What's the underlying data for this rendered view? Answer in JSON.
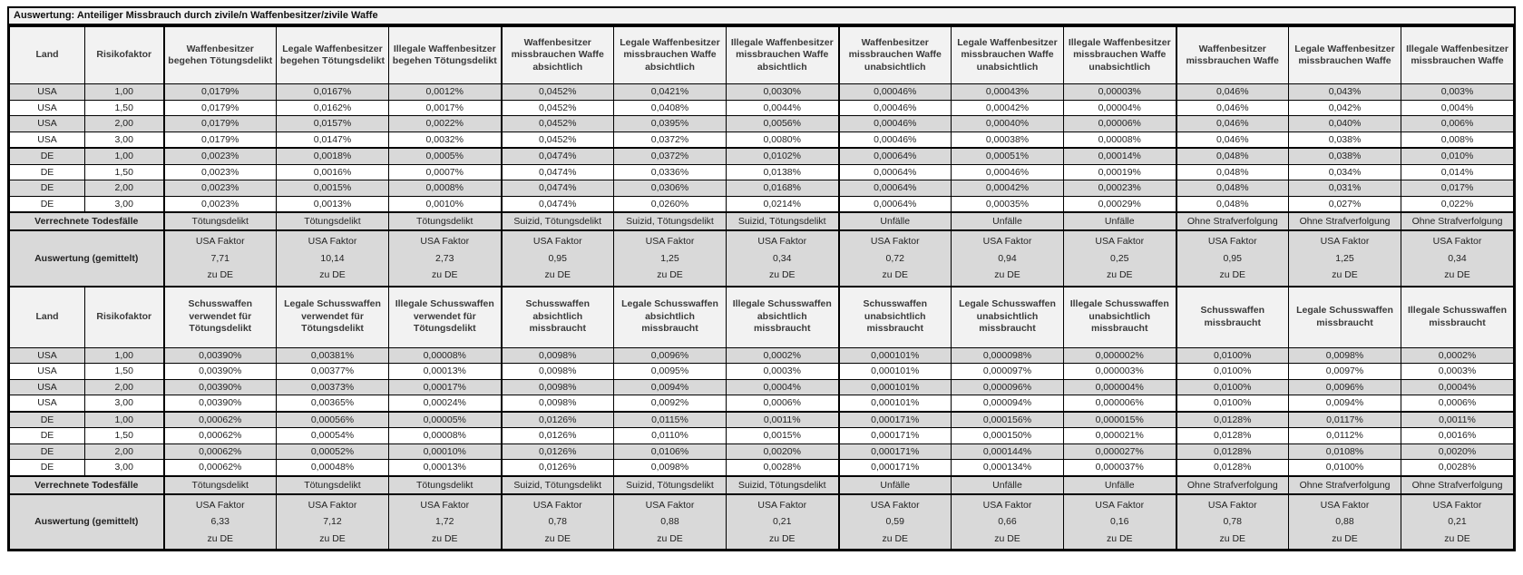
{
  "title": "Auswertung: Anteiliger Missbrauch durch zivile/n Waffenbesitzer/zivile Waffe",
  "labels": {
    "verrechnete_todesfaelle": "Verrechnete Todesfälle",
    "auswertung_gemittelt": "Auswertung (gemittelt)",
    "usa_faktor": "USA Faktor",
    "zu_de": "zu DE"
  },
  "colors": {
    "stripe_row": "#d9d9d9",
    "header_bg": "#f2f2f2",
    "summary_bg": "#d9d9d9",
    "border": "#000000",
    "background": "#ffffff"
  },
  "tables": [
    {
      "headers": [
        "Land",
        "Risikofaktor",
        "Waffenbesitzer\nbegehen Tötungsdelikt",
        "Legale Waffenbesitzer\nbegehen Tötungsdelikt",
        "Illegale Waffenbesitzer\nbegehen Tötungsdelikt",
        "Waffenbesitzer\nmissbrauchen Waffe\nabsichtlich",
        "Legale Waffenbesitzer\nmissbrauchen Waffe\nabsichtlich",
        "Illegale Waffenbesitzer\nmissbrauchen Waffe\nabsichtlich",
        "Waffenbesitzer\nmissbrauchen Waffe\nunabsichtlich",
        "Legale Waffenbesitzer\nmissbrauchen Waffe\nunabsichtlich",
        "Illegale Waffenbesitzer\nmissbrauchen Waffe\nunabsichtlich",
        "Waffenbesitzer\nmissbrauchen Waffe",
        "Legale Waffenbesitzer\nmissbrauchen Waffe",
        "Illegale Waffenbesitzer\nmissbrauchen Waffe"
      ],
      "rows": [
        [
          "USA",
          "1,00",
          "0,0179%",
          "0,0167%",
          "0,0012%",
          "0,0452%",
          "0,0421%",
          "0,0030%",
          "0,00046%",
          "0,00043%",
          "0,00003%",
          "0,046%",
          "0,043%",
          "0,003%"
        ],
        [
          "USA",
          "1,50",
          "0,0179%",
          "0,0162%",
          "0,0017%",
          "0,0452%",
          "0,0408%",
          "0,0044%",
          "0,00046%",
          "0,00042%",
          "0,00004%",
          "0,046%",
          "0,042%",
          "0,004%"
        ],
        [
          "USA",
          "2,00",
          "0,0179%",
          "0,0157%",
          "0,0022%",
          "0,0452%",
          "0,0395%",
          "0,0056%",
          "0,00046%",
          "0,00040%",
          "0,00006%",
          "0,046%",
          "0,040%",
          "0,006%"
        ],
        [
          "USA",
          "3,00",
          "0,0179%",
          "0,0147%",
          "0,0032%",
          "0,0452%",
          "0,0372%",
          "0,0080%",
          "0,00046%",
          "0,00038%",
          "0,00008%",
          "0,046%",
          "0,038%",
          "0,008%"
        ],
        [
          "DE",
          "1,00",
          "0,0023%",
          "0,0018%",
          "0,0005%",
          "0,0474%",
          "0,0372%",
          "0,0102%",
          "0,00064%",
          "0,00051%",
          "0,00014%",
          "0,048%",
          "0,038%",
          "0,010%"
        ],
        [
          "DE",
          "1,50",
          "0,0023%",
          "0,0016%",
          "0,0007%",
          "0,0474%",
          "0,0336%",
          "0,0138%",
          "0,00064%",
          "0,00046%",
          "0,00019%",
          "0,048%",
          "0,034%",
          "0,014%"
        ],
        [
          "DE",
          "2,00",
          "0,0023%",
          "0,0015%",
          "0,0008%",
          "0,0474%",
          "0,0306%",
          "0,0168%",
          "0,00064%",
          "0,00042%",
          "0,00023%",
          "0,048%",
          "0,031%",
          "0,017%"
        ],
        [
          "DE",
          "3,00",
          "0,0023%",
          "0,0013%",
          "0,0010%",
          "0,0474%",
          "0,0260%",
          "0,0214%",
          "0,00064%",
          "0,00035%",
          "0,00029%",
          "0,048%",
          "0,027%",
          "0,022%"
        ]
      ],
      "todesfaelle": [
        "Tötungsdelikt",
        "Tötungsdelikt",
        "Tötungsdelikt",
        "Suizid, Tötungsdelikt",
        "Suizid, Tötungsdelikt",
        "Suizid, Tötungsdelikt",
        "Unfälle",
        "Unfälle",
        "Unfälle",
        "Ohne Strafverfolgung",
        "Ohne Strafverfolgung",
        "Ohne Strafverfolgung"
      ],
      "usa_faktor_werte": [
        "7,71",
        "10,14",
        "2,73",
        "0,95",
        "1,25",
        "0,34",
        "0,72",
        "0,94",
        "0,25",
        "0,95",
        "1,25",
        "0,34"
      ]
    },
    {
      "headers": [
        "Land",
        "Risikofaktor",
        "Schusswaffen\nverwendet für\nTötungsdelikt",
        "Legale Schusswaffen\nverwendet für\nTötungsdelikt",
        "Illegale Schusswaffen\nverwendet für\nTötungsdelikt",
        "Schusswaffen\nabsichtlich\nmissbraucht",
        "Legale Schusswaffen\nabsichtlich\nmissbraucht",
        "Illegale Schusswaffen\nabsichtlich\nmissbraucht",
        "Schusswaffen\nunabsichtlich\nmissbraucht",
        "Legale Schusswaffen\nunabsichtlich\nmissbraucht",
        "Illegale Schusswaffen\nunabsichtlich\nmissbraucht",
        "Schusswaffen\nmissbraucht",
        "Legale Schusswaffen\nmissbraucht",
        "Illegale Schusswaffen\nmissbraucht"
      ],
      "rows": [
        [
          "USA",
          "1,00",
          "0,00390%",
          "0,00381%",
          "0,00008%",
          "0,0098%",
          "0,0096%",
          "0,0002%",
          "0,000101%",
          "0,000098%",
          "0,000002%",
          "0,0100%",
          "0,0098%",
          "0,0002%"
        ],
        [
          "USA",
          "1,50",
          "0,00390%",
          "0,00377%",
          "0,00013%",
          "0,0098%",
          "0,0095%",
          "0,0003%",
          "0,000101%",
          "0,000097%",
          "0,000003%",
          "0,0100%",
          "0,0097%",
          "0,0003%"
        ],
        [
          "USA",
          "2,00",
          "0,00390%",
          "0,00373%",
          "0,00017%",
          "0,0098%",
          "0,0094%",
          "0,0004%",
          "0,000101%",
          "0,000096%",
          "0,000004%",
          "0,0100%",
          "0,0096%",
          "0,0004%"
        ],
        [
          "USA",
          "3,00",
          "0,00390%",
          "0,00365%",
          "0,00024%",
          "0,0098%",
          "0,0092%",
          "0,0006%",
          "0,000101%",
          "0,000094%",
          "0,000006%",
          "0,0100%",
          "0,0094%",
          "0,0006%"
        ],
        [
          "DE",
          "1,00",
          "0,00062%",
          "0,00056%",
          "0,00005%",
          "0,0126%",
          "0,0115%",
          "0,0011%",
          "0,000171%",
          "0,000156%",
          "0,000015%",
          "0,0128%",
          "0,0117%",
          "0,0011%"
        ],
        [
          "DE",
          "1,50",
          "0,00062%",
          "0,00054%",
          "0,00008%",
          "0,0126%",
          "0,0110%",
          "0,0015%",
          "0,000171%",
          "0,000150%",
          "0,000021%",
          "0,0128%",
          "0,0112%",
          "0,0016%"
        ],
        [
          "DE",
          "2,00",
          "0,00062%",
          "0,00052%",
          "0,00010%",
          "0,0126%",
          "0,0106%",
          "0,0020%",
          "0,000171%",
          "0,000144%",
          "0,000027%",
          "0,0128%",
          "0,0108%",
          "0,0020%"
        ],
        [
          "DE",
          "3,00",
          "0,00062%",
          "0,00048%",
          "0,00013%",
          "0,0126%",
          "0,0098%",
          "0,0028%",
          "0,000171%",
          "0,000134%",
          "0,000037%",
          "0,0128%",
          "0,0100%",
          "0,0028%"
        ]
      ],
      "todesfaelle": [
        "Tötungsdelikt",
        "Tötungsdelikt",
        "Tötungsdelikt",
        "Suizid, Tötungsdelikt",
        "Suizid, Tötungsdelikt",
        "Suizid, Tötungsdelikt",
        "Unfälle",
        "Unfälle",
        "Unfälle",
        "Ohne Strafverfolgung",
        "Ohne Strafverfolgung",
        "Ohne Strafverfolgung"
      ],
      "usa_faktor_werte": [
        "6,33",
        "7,12",
        "1,72",
        "0,78",
        "0,88",
        "0,21",
        "0,59",
        "0,66",
        "0,16",
        "0,78",
        "0,88",
        "0,21"
      ]
    }
  ]
}
